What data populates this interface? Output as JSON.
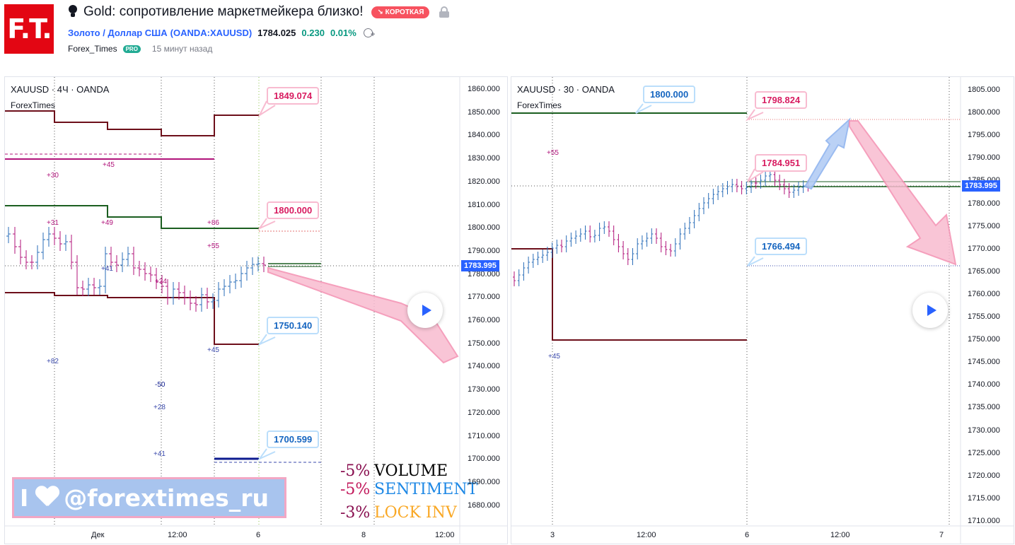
{
  "header": {
    "logo_text": "F.T.",
    "title": "Gold: сопротивление маркетмейкера близко!",
    "direction_badge": "↘ КОРОТКАЯ",
    "symbol_name": "Золото / Доллар США",
    "symbol_code": "(OANDA:XAUUSD)",
    "price": "1784.025",
    "change": "0.230",
    "change_pct": "0.01%",
    "author": "Forex_Times",
    "author_badge": "PRO",
    "time_ago": "15 минут назад"
  },
  "left_chart": {
    "title": "XAUUSD · 4Ч · OANDA",
    "subtitle": "ForexTimes",
    "y_ticks": [
      "1860.000",
      "1850.000",
      "1840.000",
      "1830.000",
      "1820.000",
      "1810.000",
      "1800.000",
      "1790.000",
      "1780.000",
      "1770.000",
      "1760.000",
      "1750.000",
      "1740.000",
      "1730.000",
      "1720.000",
      "1710.000",
      "1700.000",
      "1690.000",
      "1680.000"
    ],
    "x_ticks": [
      "Дек",
      "12:00",
      "6",
      "8",
      "12:00"
    ],
    "current_price": "1783.995",
    "callouts": [
      "1849.074",
      "1800.000",
      "1750.140",
      "1700.599"
    ],
    "labels": [
      "+30",
      "+45",
      "+31",
      "+49",
      "+86",
      "+55",
      "+41",
      "+34",
      "+45",
      "+82",
      "-50",
      "+28",
      "+41"
    ],
    "watermark": "@forextimes_ru",
    "watermark_prefix": "I",
    "metrics": [
      {
        "value": "-5%",
        "label": "VOLUME",
        "value_color": "#880e4f",
        "label_color": "#000000"
      },
      {
        "value": "-5%",
        "label": "SENTIMENT",
        "value_color": "#c2185b",
        "label_color": "#1e88e5"
      },
      {
        "value": "-3%",
        "label": "LOCK INV",
        "value_color": "#880e4f",
        "label_color": "#f9a825"
      }
    ]
  },
  "right_chart": {
    "title": "XAUUSD · 30 · OANDA",
    "subtitle": "ForexTimes",
    "y_ticks": [
      "1805.000",
      "1800.000",
      "1795.000",
      "1790.000",
      "1785.000",
      "1780.000",
      "1775.000",
      "1770.000",
      "1765.000",
      "1760.000",
      "1755.000",
      "1750.000",
      "1745.000",
      "1740.000",
      "1735.000",
      "1730.000",
      "1725.000",
      "1720.000",
      "1715.000",
      "1710.000"
    ],
    "x_ticks": [
      "3",
      "12:00",
      "6",
      "12:00",
      "7"
    ],
    "current_price": "1783.995",
    "callouts": [
      "1800.000",
      "1798.824",
      "1784.951",
      "1766.494"
    ],
    "labels": [
      "+55",
      "+45"
    ]
  },
  "colors": {
    "accent": "#2962ff",
    "pink": "#f48fb1",
    "dark_red": "#6d0f1a",
    "green": "#1b5e20"
  }
}
